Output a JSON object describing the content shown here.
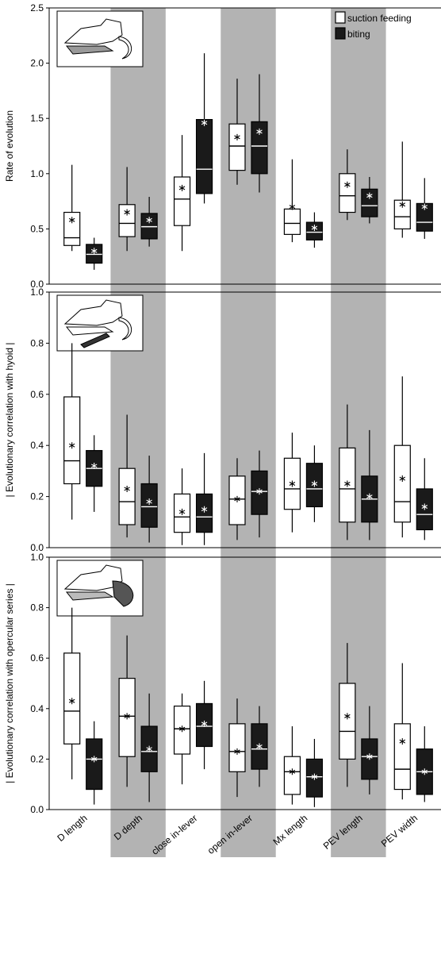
{
  "chart_data": [
    {
      "type": "box",
      "ylabel": "Rate of evolution",
      "ylim": [
        0,
        2.5
      ],
      "yticks": [
        {
          "value": 0,
          "label": "0.0"
        },
        0.5,
        {
          "value": 1,
          "label": "1.0"
        },
        1.5,
        {
          "value": 2,
          "label": "2.0"
        },
        2.5
      ],
      "legend": "upper right",
      "series": [
        {
          "name": "suction feeding",
          "color": "#ffffff",
          "low": [
            0.3,
            0.3,
            0.3,
            0.9,
            0.38,
            0.58,
            0.42
          ],
          "q1": [
            0.35,
            0.43,
            0.53,
            1.03,
            0.45,
            0.65,
            0.5
          ],
          "median": [
            0.42,
            0.55,
            0.77,
            1.25,
            0.55,
            0.8,
            0.61
          ],
          "q3": [
            0.65,
            0.72,
            0.97,
            1.45,
            0.68,
            1.0,
            0.76
          ],
          "high": [
            1.08,
            1.06,
            1.35,
            1.86,
            1.13,
            1.22,
            1.29
          ],
          "mean": [
            0.58,
            0.65,
            0.87,
            1.33,
            0.7,
            0.9,
            0.72
          ]
        },
        {
          "name": "biting",
          "color": "#1a1a1a",
          "low": [
            0.13,
            0.34,
            0.73,
            0.83,
            0.33,
            0.55,
            0.41
          ],
          "q1": [
            0.19,
            0.41,
            0.82,
            1.0,
            0.4,
            0.61,
            0.48
          ],
          "median": [
            0.27,
            0.52,
            1.04,
            1.25,
            0.47,
            0.71,
            0.56
          ],
          "q3": [
            0.36,
            0.64,
            1.49,
            1.47,
            0.56,
            0.86,
            0.73
          ],
          "high": [
            0.42,
            0.79,
            2.09,
            1.9,
            0.65,
            0.97,
            0.96
          ],
          "mean": [
            0.3,
            0.58,
            1.46,
            1.38,
            0.51,
            0.8,
            0.7
          ]
        }
      ]
    },
    {
      "type": "box",
      "ylabel": "| Evolutionary correlation with hyoid |",
      "ylim": [
        0,
        1
      ],
      "yticks": [
        {
          "value": 0,
          "label": "0.0"
        },
        0.2,
        0.4,
        0.6,
        0.8,
        {
          "value": 1,
          "label": "1.0"
        }
      ],
      "series": [
        {
          "color": "#ffffff",
          "low": [
            0.11,
            0.04,
            0.01,
            0.03,
            0.06,
            0.03,
            0.04
          ],
          "q1": [
            0.25,
            0.09,
            0.06,
            0.09,
            0.15,
            0.1,
            0.1
          ],
          "median": [
            0.34,
            0.18,
            0.12,
            0.19,
            0.23,
            0.23,
            0.18
          ],
          "q3": [
            0.59,
            0.31,
            0.21,
            0.28,
            0.35,
            0.39,
            0.4
          ],
          "high": [
            0.8,
            0.52,
            0.31,
            0.35,
            0.45,
            0.56,
            0.67
          ],
          "mean": [
            0.4,
            0.23,
            0.14,
            0.19,
            0.25,
            0.25,
            0.27
          ]
        },
        {
          "color": "#1a1a1a",
          "low": [
            0.14,
            0.02,
            0.01,
            0.04,
            0.1,
            0.03,
            0.03
          ],
          "q1": [
            0.24,
            0.08,
            0.06,
            0.13,
            0.16,
            0.1,
            0.07
          ],
          "median": [
            0.31,
            0.16,
            0.12,
            0.22,
            0.23,
            0.19,
            0.13
          ],
          "q3": [
            0.38,
            0.25,
            0.21,
            0.3,
            0.33,
            0.28,
            0.23
          ],
          "high": [
            0.44,
            0.36,
            0.37,
            0.38,
            0.4,
            0.46,
            0.35
          ],
          "mean": [
            0.32,
            0.18,
            0.15,
            0.22,
            0.25,
            0.2,
            0.16
          ]
        }
      ]
    },
    {
      "type": "box",
      "ylabel": "| Evolutionary correlation with opercular series |",
      "ylim": [
        0,
        1
      ],
      "yticks": [
        {
          "value": 0,
          "label": "0.0"
        },
        0.2,
        0.4,
        0.6,
        0.8,
        {
          "value": 1,
          "label": "1.0"
        }
      ],
      "categories": [
        "D length",
        "D depth",
        "close in-lever",
        "open in-lever",
        "Mx length",
        "PEV length",
        "PEV width"
      ],
      "series": [
        {
          "color": "#ffffff",
          "low": [
            0.12,
            0.09,
            0.1,
            0.05,
            0.02,
            0.09,
            0.04
          ],
          "q1": [
            0.26,
            0.21,
            0.22,
            0.15,
            0.06,
            0.2,
            0.08
          ],
          "median": [
            0.39,
            0.37,
            0.32,
            0.23,
            0.15,
            0.31,
            0.16
          ],
          "q3": [
            0.62,
            0.52,
            0.41,
            0.34,
            0.21,
            0.5,
            0.34
          ],
          "high": [
            0.8,
            0.69,
            0.46,
            0.44,
            0.33,
            0.66,
            0.58
          ],
          "mean": [
            0.43,
            0.37,
            0.32,
            0.23,
            0.15,
            0.37,
            0.27
          ]
        },
        {
          "color": "#1a1a1a",
          "low": [
            0.02,
            0.03,
            0.16,
            0.09,
            0.01,
            0.06,
            0.03
          ],
          "q1": [
            0.08,
            0.15,
            0.25,
            0.16,
            0.05,
            0.12,
            0.06
          ],
          "median": [
            0.2,
            0.23,
            0.33,
            0.24,
            0.13,
            0.21,
            0.15
          ],
          "q3": [
            0.28,
            0.33,
            0.42,
            0.34,
            0.2,
            0.28,
            0.24
          ],
          "high": [
            0.35,
            0.46,
            0.51,
            0.41,
            0.28,
            0.41,
            0.33
          ],
          "mean": [
            0.2,
            0.24,
            0.34,
            0.25,
            0.13,
            0.21,
            0.15
          ]
        }
      ]
    }
  ]
}
